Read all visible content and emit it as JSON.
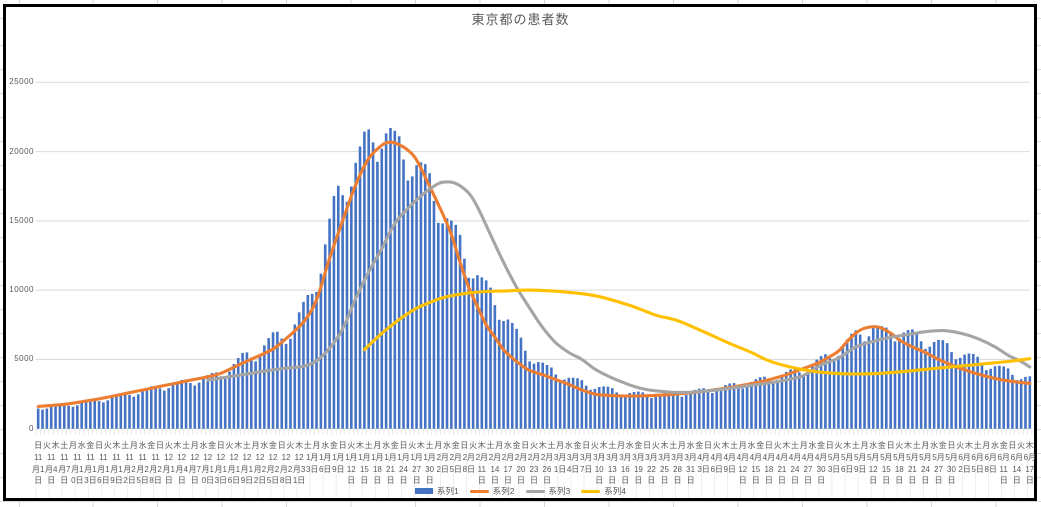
{
  "title": "東京都の患者数",
  "legend": [
    "系列1",
    "系列2",
    "系列3",
    "系列4"
  ],
  "colors": {
    "bar": "#4472C4",
    "line2": "#ED7D31",
    "line3": "#A5A5A5",
    "line4": "#FFC000",
    "grid": "#D9D9D9",
    "axis_text": "#595959",
    "chart_border": "#000000"
  },
  "y_axis": {
    "labels": [
      "25000",
      "20000",
      "15000",
      "10000",
      "5000",
      "0"
    ],
    "ticks": [
      25000,
      20000,
      15000,
      10000,
      5000,
      0
    ]
  },
  "x_axis": {
    "weekday_row": "日火木土月水金日火木土月水金日火木土月水金日火木土月水金日火木土月水金日火木土月水金日火木土月水金日火木土月水金日火木土月水金日火木土月水金日火木土月水金日火木土月水金日火木土月水金日火木土月水金日火木土月水金日火木土月水金日火木",
    "weekday_step_days": 2,
    "date_step_days": 3,
    "date_labels": [
      "11月1日",
      "11月4日",
      "11月7日",
      "11月10日",
      "11月13日",
      "11月16日",
      "11月19日",
      "11月22日",
      "11月25日",
      "11月28日",
      "12月1日",
      "12月4日",
      "12月7日",
      "12月10日",
      "12月13日",
      "12月16日",
      "12月19日",
      "12月22日",
      "12月25日",
      "12月28日",
      "12月31日",
      "1月3日",
      "1月6日",
      "1月9日",
      "1月12日",
      "1月15日",
      "1月18日",
      "1月21日",
      "1月24日",
      "1月27日",
      "1月30日",
      "2月2日",
      "2月5日",
      "2月8日",
      "2月11日",
      "2月14日",
      "2月17日",
      "2月20日",
      "2月23日",
      "2月26日",
      "3月1日",
      "3月4日",
      "3月7日",
      "3月10日",
      "3月13日",
      "3月16日",
      "3月19日",
      "3月22日",
      "3月25日",
      "3月28日",
      "3月31日",
      "4月3日",
      "4月6日",
      "4月9日",
      "4月12日",
      "4月15日",
      "4月18日",
      "4月21日",
      "4月24日",
      "4月27日",
      "4月30日",
      "5月3日",
      "5月6日",
      "5月9日",
      "5月12日",
      "5月15日",
      "5月18日",
      "5月21日",
      "5月24日",
      "5月27日",
      "5月30日",
      "6月2日",
      "6月5日",
      "6月8日",
      "6月11日",
      "6月14日",
      "6月17日"
    ]
  },
  "chart_data": {
    "type": "combo",
    "x_axis_days": 229,
    "x_start_label": "11月1日",
    "x_end_label": "6月17日",
    "ylim": [
      0,
      25000
    ],
    "grid": "horizontal",
    "legend_position": "bottom",
    "series": [
      {
        "name": "系列1",
        "type": "bar",
        "color": "#4472C4",
        "values": [
          1460,
          1380,
          1460,
          1600,
          1700,
          1760,
          1770,
          1650,
          1580,
          1690,
          1870,
          2000,
          2090,
          2120,
          1990,
          1900,
          2050,
          2270,
          2420,
          2540,
          2580,
          2430,
          2310,
          2480,
          2740,
          2930,
          3060,
          3100,
          2910,
          2750,
          2930,
          3200,
          3390,
          3520,
          3540,
          3300,
          3120,
          3330,
          3650,
          3870,
          4020,
          4060,
          3780,
          3730,
          4120,
          4670,
          5100,
          5460,
          5510,
          5140,
          4860,
          5340,
          6010,
          6540,
          6960,
          7000,
          6500,
          6120,
          6490,
          7520,
          8400,
          9150,
          9650,
          9730,
          9870,
          11190,
          13300,
          15160,
          16800,
          17530,
          16850,
          16380,
          17480,
          19190,
          20370,
          21440,
          21600,
          20660,
          19260,
          20210,
          21310,
          21700,
          21500,
          21100,
          19430,
          17910,
          18210,
          19020,
          19220,
          19100,
          18440,
          16440,
          14850,
          14820,
          15180,
          15020,
          14710,
          13990,
          12270,
          10890,
          10840,
          11080,
          10920,
          10700,
          10180,
          8920,
          7860,
          7770,
          7880,
          7630,
          7200,
          6570,
          5630,
          4860,
          4700,
          4810,
          4760,
          4600,
          4420,
          3910,
          3510,
          3540,
          3670,
          3680,
          3640,
          3500,
          3100,
          2810,
          2870,
          3000,
          3050,
          3030,
          2930,
          2620,
          2390,
          2440,
          2580,
          2650,
          2680,
          2620,
          2380,
          2210,
          2300,
          2480,
          2570,
          2650,
          2650,
          2450,
          2300,
          2440,
          2680,
          2800,
          2890,
          2920,
          2720,
          2570,
          2730,
          2980,
          3150,
          3260,
          3290,
          3070,
          2900,
          3090,
          3380,
          3580,
          3720,
          3750,
          3490,
          3310,
          3530,
          3860,
          4100,
          4280,
          4350,
          4070,
          3870,
          4180,
          4650,
          4990,
          5240,
          5380,
          5090,
          4880,
          5260,
          5930,
          6440,
          6850,
          7100,
          6790,
          6300,
          6670,
          7270,
          7400,
          7400,
          7300,
          6840,
          6300,
          6530,
          6940,
          7120,
          7170,
          7000,
          6310,
          5760,
          5920,
          6260,
          6410,
          6390,
          6180,
          5530,
          5010,
          5110,
          5350,
          5430,
          5390,
          5190,
          4660,
          4230,
          4320,
          4510,
          4550,
          4490,
          4350,
          3880,
          3510,
          3570,
          3740,
          3780
        ]
      },
      {
        "name": "系列2",
        "type": "line",
        "color": "#ED7D31",
        "points": [
          [
            0,
            1600
          ],
          [
            4,
            1700
          ],
          [
            7,
            1800
          ],
          [
            11,
            2000
          ],
          [
            14,
            2150
          ],
          [
            18,
            2400
          ],
          [
            21,
            2600
          ],
          [
            25,
            2850
          ],
          [
            28,
            3050
          ],
          [
            32,
            3300
          ],
          [
            35,
            3500
          ],
          [
            39,
            3750
          ],
          [
            42,
            4000
          ],
          [
            46,
            4590
          ],
          [
            50,
            5150
          ],
          [
            54,
            5750
          ],
          [
            57,
            6500
          ],
          [
            61,
            7700
          ],
          [
            64,
            9300
          ],
          [
            67,
            12300
          ],
          [
            70,
            15000
          ],
          [
            73,
            17600
          ],
          [
            76,
            19500
          ],
          [
            79,
            20450
          ],
          [
            81,
            20680
          ],
          [
            83,
            20500
          ],
          [
            85,
            20100
          ],
          [
            87,
            19400
          ],
          [
            90,
            17500
          ],
          [
            93,
            15500
          ],
          [
            95,
            14000
          ],
          [
            97,
            12000
          ],
          [
            99,
            10200
          ],
          [
            101,
            8800
          ],
          [
            103,
            7500
          ],
          [
            105,
            6600
          ],
          [
            107,
            5700
          ],
          [
            109,
            5100
          ],
          [
            111,
            4600
          ],
          [
            113,
            4200
          ],
          [
            116,
            3900
          ],
          [
            119,
            3550
          ],
          [
            122,
            3200
          ],
          [
            125,
            2800
          ],
          [
            128,
            2500
          ],
          [
            131,
            2400
          ],
          [
            134,
            2370
          ],
          [
            137,
            2360
          ],
          [
            140,
            2380
          ],
          [
            143,
            2420
          ],
          [
            146,
            2480
          ],
          [
            149,
            2560
          ],
          [
            152,
            2660
          ],
          [
            155,
            2780
          ],
          [
            158,
            2920
          ],
          [
            161,
            3080
          ],
          [
            164,
            3250
          ],
          [
            167,
            3450
          ],
          [
            170,
            3700
          ],
          [
            173,
            4000
          ],
          [
            176,
            4350
          ],
          [
            179,
            4700
          ],
          [
            182,
            5200
          ],
          [
            184,
            5600
          ],
          [
            186,
            6300
          ],
          [
            188,
            6900
          ],
          [
            190,
            7250
          ],
          [
            193,
            7350
          ],
          [
            196,
            6900
          ],
          [
            198,
            6400
          ],
          [
            201,
            5900
          ],
          [
            204,
            5500
          ],
          [
            207,
            5000
          ],
          [
            210,
            4600
          ],
          [
            213,
            4250
          ],
          [
            216,
            3950
          ],
          [
            219,
            3700
          ],
          [
            222,
            3500
          ],
          [
            225,
            3370
          ],
          [
            228,
            3270
          ]
        ]
      },
      {
        "name": "系列3",
        "type": "line",
        "color": "#A5A5A5",
        "points": [
          [
            39,
            3500
          ],
          [
            44,
            3750
          ],
          [
            49,
            4000
          ],
          [
            54,
            4250
          ],
          [
            58,
            4400
          ],
          [
            61,
            4500
          ],
          [
            64,
            4900
          ],
          [
            67,
            5800
          ],
          [
            70,
            7200
          ],
          [
            73,
            9400
          ],
          [
            76,
            11300
          ],
          [
            79,
            13000
          ],
          [
            82,
            14800
          ],
          [
            85,
            15900
          ],
          [
            88,
            16800
          ],
          [
            91,
            17500
          ],
          [
            93,
            17790
          ],
          [
            96,
            17700
          ],
          [
            99,
            17000
          ],
          [
            101,
            16000
          ],
          [
            104,
            14000
          ],
          [
            107,
            12000
          ],
          [
            110,
            10200
          ],
          [
            113,
            8700
          ],
          [
            116,
            7300
          ],
          [
            119,
            6200
          ],
          [
            122,
            5500
          ],
          [
            125,
            5000
          ],
          [
            128,
            4300
          ],
          [
            131,
            3800
          ],
          [
            134,
            3400
          ],
          [
            137,
            3050
          ],
          [
            140,
            2820
          ],
          [
            143,
            2700
          ],
          [
            146,
            2630
          ],
          [
            149,
            2620
          ],
          [
            152,
            2680
          ],
          [
            156,
            2800
          ],
          [
            160,
            2950
          ],
          [
            164,
            3130
          ],
          [
            168,
            3300
          ],
          [
            172,
            3520
          ],
          [
            176,
            3850
          ],
          [
            180,
            4600
          ],
          [
            184,
            5100
          ],
          [
            188,
            5900
          ],
          [
            192,
            6300
          ],
          [
            196,
            6600
          ],
          [
            200,
            6800
          ],
          [
            204,
            7000
          ],
          [
            208,
            7080
          ],
          [
            212,
            6900
          ],
          [
            216,
            6500
          ],
          [
            220,
            5900
          ],
          [
            223,
            5300
          ],
          [
            226,
            4850
          ],
          [
            228,
            4450
          ]
        ]
      },
      {
        "name": "系列4",
        "type": "line",
        "color": "#FFC000",
        "points": [
          [
            75,
            5700
          ],
          [
            78,
            6600
          ],
          [
            81,
            7400
          ],
          [
            84,
            8100
          ],
          [
            87,
            8700
          ],
          [
            90,
            9100
          ],
          [
            93,
            9450
          ],
          [
            96,
            9650
          ],
          [
            99,
            9800
          ],
          [
            103,
            9900
          ],
          [
            108,
            9950
          ],
          [
            113,
            10000
          ],
          [
            120,
            9900
          ],
          [
            128,
            9600
          ],
          [
            136,
            8900
          ],
          [
            142,
            8200
          ],
          [
            147,
            7800
          ],
          [
            153,
            7000
          ],
          [
            159,
            6150
          ],
          [
            164,
            5500
          ],
          [
            168,
            4900
          ],
          [
            173,
            4450
          ],
          [
            178,
            4150
          ],
          [
            183,
            4000
          ],
          [
            188,
            3950
          ],
          [
            193,
            3980
          ],
          [
            198,
            4100
          ],
          [
            203,
            4250
          ],
          [
            208,
            4400
          ],
          [
            213,
            4550
          ],
          [
            218,
            4700
          ],
          [
            223,
            4850
          ],
          [
            228,
            5050
          ]
        ]
      }
    ]
  }
}
